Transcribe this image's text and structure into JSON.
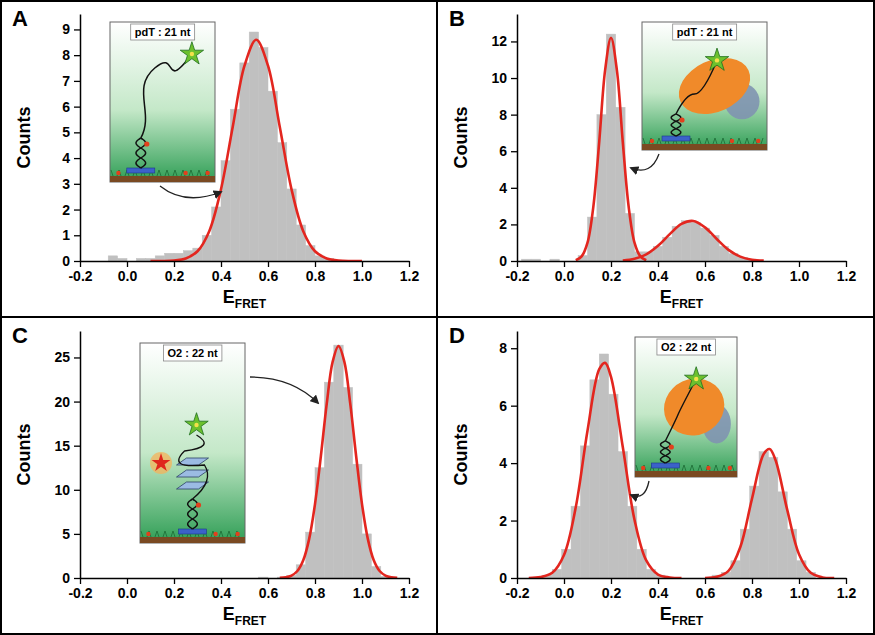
{
  "chart_data": [
    {
      "type": "histogram",
      "panel": "A",
      "inset_label": "pdT : 21 nt",
      "xlabel": {
        "text": "E",
        "subscript": "FRET"
      },
      "ylabel": "Counts",
      "xlim": [
        -0.2,
        1.2
      ],
      "xticks": [
        -0.2,
        {
          "value": 0,
          "label": "0.0"
        },
        0.2,
        0.4,
        0.6,
        0.8,
        {
          "value": 1,
          "label": "1.0"
        },
        1.2
      ],
      "ylim": [
        0,
        9.6
      ],
      "yticks": [
        0,
        1,
        2,
        3,
        4,
        5,
        6,
        7,
        8,
        9
      ],
      "grid": false,
      "color": "#c0c0c0",
      "bins": [
        -0.08,
        -0.04,
        0,
        0.04,
        0.08,
        0.12,
        0.16,
        0.2,
        0.24,
        0.28,
        0.32,
        0.36,
        0.4,
        0.44,
        0.48,
        0.52,
        0.56,
        0.6,
        0.64,
        0.68,
        0.72,
        0.76,
        0.8,
        0.84,
        0.88,
        0.92
      ],
      "counts": [
        0.2,
        0.1,
        0,
        0.1,
        0.1,
        0.2,
        0.3,
        0.3,
        0.4,
        0.5,
        1.0,
        2.1,
        3.9,
        5.9,
        7.7,
        8.9,
        8.3,
        6.6,
        4.6,
        2.8,
        1.4,
        0.6,
        0.2,
        0.1,
        0
      ],
      "fits": [
        {
          "type": "line",
          "color": "#e3261f",
          "x": [
            0.1,
            0.15,
            0.2,
            0.25,
            0.3,
            0.35,
            0.4,
            0.45,
            0.5,
            0.55,
            0.6,
            0.65,
            0.7,
            0.75,
            0.8,
            0.85,
            0.9,
            0.95,
            1.0
          ],
          "values": [
            0,
            0,
            0.02,
            0.1,
            0.38,
            1.16,
            2.79,
            5.22,
            7.59,
            8.6,
            7.59,
            5.22,
            2.79,
            1.16,
            0.38,
            0.1,
            0.02,
            0,
            0
          ]
        }
      ]
    },
    {
      "type": "histogram",
      "panel": "B",
      "inset_label": "pdT : 21 nt",
      "xlabel": {
        "text": "E",
        "subscript": "FRET"
      },
      "ylabel": "Counts",
      "xlim": [
        -0.2,
        1.2
      ],
      "xticks": [
        -0.2,
        {
          "value": 0,
          "label": "0.0"
        },
        0.2,
        0.4,
        0.6,
        0.8,
        {
          "value": 1,
          "label": "1.0"
        },
        1.2
      ],
      "ylim": [
        0,
        13.5
      ],
      "yticks": [
        0,
        2,
        4,
        6,
        8,
        10,
        12
      ],
      "grid": false,
      "color": "#c0c0c0",
      "bins": [
        -0.18,
        -0.14,
        -0.1,
        -0.06,
        -0.02,
        0.02,
        0.06,
        0.1,
        0.14,
        0.18,
        0.22,
        0.26,
        0.3,
        0.34,
        0.38,
        0.42,
        0.46,
        0.5,
        0.54,
        0.58,
        0.62,
        0.66,
        0.7,
        0.74,
        0.78,
        0.82,
        0.86
      ],
      "counts": [
        0.1,
        0.1,
        0,
        0.1,
        0,
        0,
        0.3,
        2.4,
        8.0,
        12.4,
        8.4,
        2.6,
        0.5,
        0.5,
        0.8,
        1.3,
        1.9,
        2.2,
        2.1,
        1.8,
        1.4,
        0.8,
        0.4,
        0.2,
        0.1,
        0
      ],
      "fits": [
        {
          "type": "line",
          "color": "#e3261f",
          "x": [
            0.05,
            0.075,
            0.1,
            0.125,
            0.15,
            0.175,
            0.2,
            0.225,
            0.25,
            0.275,
            0.3,
            0.325,
            0.35
          ],
          "values": [
            0.04,
            0.25,
            1.0,
            2.99,
            6.53,
            10.43,
            12.2,
            10.43,
            6.53,
            2.99,
            1.0,
            0.25,
            0.04
          ]
        },
        {
          "type": "line",
          "color": "#e3261f",
          "x": [
            0.25,
            0.3,
            0.35,
            0.4,
            0.45,
            0.5,
            0.55,
            0.6,
            0.65,
            0.7,
            0.75,
            0.8,
            0.85
          ],
          "values": [
            0.03,
            0.12,
            0.36,
            0.83,
            1.47,
            2.03,
            2.19,
            1.84,
            1.2,
            0.61,
            0.24,
            0.07,
            0.02
          ]
        }
      ]
    },
    {
      "type": "histogram",
      "panel": "C",
      "inset_label": "O2 : 22 nt",
      "xlabel": {
        "text": "E",
        "subscript": "FRET"
      },
      "ylabel": "Counts",
      "xlim": [
        -0.2,
        1.2
      ],
      "xticks": [
        -0.2,
        {
          "value": 0,
          "label": "0.0"
        },
        0.2,
        0.4,
        0.6,
        0.8,
        {
          "value": 1,
          "label": "1.0"
        },
        1.2
      ],
      "ylim": [
        0,
        28
      ],
      "yticks": [
        0,
        5,
        10,
        15,
        20,
        25
      ],
      "grid": false,
      "color": "#c0c0c0",
      "bins": [
        0.52,
        0.56,
        0.6,
        0.64,
        0.68,
        0.72,
        0.76,
        0.8,
        0.84,
        0.88,
        0.92,
        0.96,
        1,
        1.04,
        1.08,
        1.12
      ],
      "counts": [
        0,
        0.1,
        0,
        0.1,
        0.3,
        1.5,
        5.2,
        12.5,
        22.2,
        26.4,
        21.6,
        12.9,
        5.0,
        1.3,
        0.2
      ],
      "fits": [
        {
          "type": "line",
          "color": "#e3261f",
          "x": [
            0.65,
            0.675,
            0.7,
            0.725,
            0.75,
            0.775,
            0.8,
            0.825,
            0.85,
            0.875,
            0.9,
            0.925,
            0.95,
            0.975,
            1.0,
            1.025,
            1.05,
            1.075,
            1.1,
            1.125,
            1.15
          ],
          "values": [
            0.02,
            0.08,
            0.27,
            0.79,
            2.01,
            4.41,
            8.38,
            13.83,
            19.76,
            24.5,
            26.3,
            24.5,
            19.76,
            13.83,
            8.38,
            4.41,
            2.01,
            0.79,
            0.27,
            0.08,
            0.02
          ]
        }
      ]
    },
    {
      "type": "histogram",
      "panel": "D",
      "inset_label": "O2 : 22 nt",
      "xlabel": {
        "text": "E",
        "subscript": "FRET"
      },
      "ylabel": "Counts",
      "xlim": [
        -0.2,
        1.2
      ],
      "xticks": [
        -0.2,
        {
          "value": 0,
          "label": "0.0"
        },
        0.2,
        0.4,
        0.6,
        0.8,
        {
          "value": 1,
          "label": "1.0"
        },
        1.2
      ],
      "ylim": [
        0,
        8.6
      ],
      "yticks": [
        0,
        2,
        4,
        6,
        8
      ],
      "grid": false,
      "color": "#c0c0c0",
      "bins": [
        -0.13,
        -0.09,
        -0.05,
        -0.01,
        0.03,
        0.07,
        0.11,
        0.15,
        0.19,
        0.23,
        0.27,
        0.31,
        0.35,
        0.39,
        0.43,
        0.47,
        0.51,
        0.55,
        0.59,
        0.63,
        0.67,
        0.71,
        0.75,
        0.79,
        0.83,
        0.87,
        0.91,
        0.95,
        0.99,
        1.03,
        1.07,
        1.11
      ],
      "counts": [
        0,
        0.1,
        0.3,
        1.0,
        2.5,
        4.6,
        6.9,
        7.8,
        6.4,
        4.4,
        2.5,
        1.0,
        0.3,
        0.1,
        0,
        0,
        0,
        0,
        0,
        0.1,
        0.2,
        0.6,
        1.7,
        3.2,
        4.4,
        4.2,
        3.0,
        1.7,
        0.6,
        0.2,
        0
      ],
      "fits": [
        {
          "type": "line",
          "color": "#e3261f",
          "x": [
            -0.15,
            -0.1,
            -0.05,
            0,
            0.05,
            0.1,
            0.15,
            0.175,
            0.2,
            0.25,
            0.3,
            0.35,
            0.4,
            0.45,
            0.5
          ],
          "values": [
            0,
            0.03,
            0.18,
            0.8,
            2.46,
            5.13,
            7.27,
            7.49,
            7.0,
            4.57,
            2.03,
            0.61,
            0.12,
            0.02,
            0
          ]
        },
        {
          "type": "line",
          "color": "#e3261f",
          "x": [
            0.6,
            0.65,
            0.7,
            0.75,
            0.8,
            0.85,
            0.875,
            0.9,
            0.95,
            1.0,
            1.05,
            1.1,
            1.15
          ],
          "values": [
            0,
            0.04,
            0.25,
            1.07,
            2.76,
            4.32,
            4.49,
            4.11,
            2.37,
            0.83,
            0.18,
            0.02,
            0
          ]
        }
      ]
    }
  ]
}
